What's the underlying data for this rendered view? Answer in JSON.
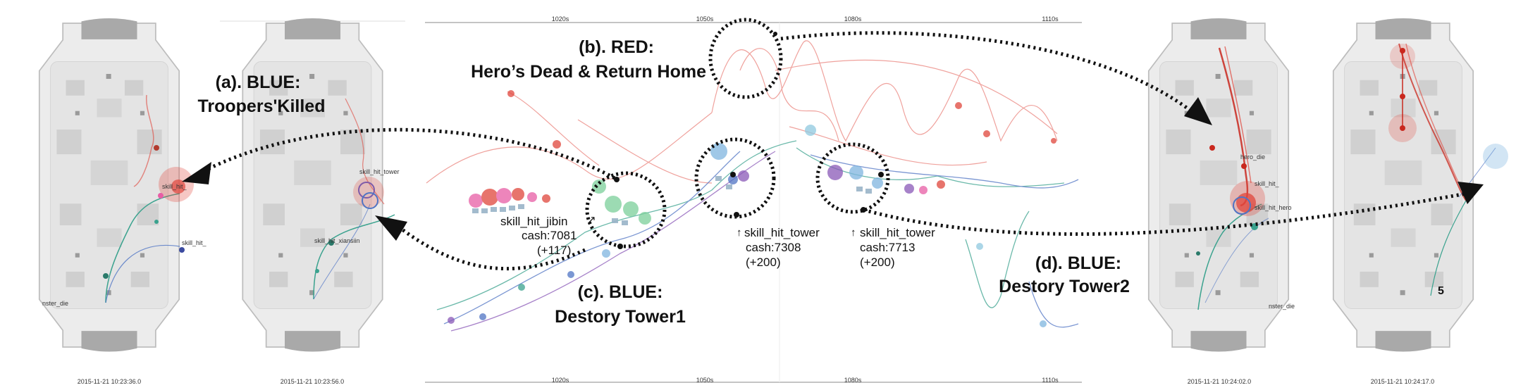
{
  "maps": [
    {
      "timestamp": "2015-11-21 10:23:36.0",
      "labels": [
        "skill_hit_",
        "skill_hit_",
        "nster_die"
      ]
    },
    {
      "timestamp": "2015-11-21 10:23:56.0",
      "labels": [
        "skill_hit_tower",
        "skill_hit_xiansiin"
      ]
    },
    {
      "timestamp": "2015-11-21 10:24:02.0",
      "labels": [
        "hero_die",
        "skill_hit_",
        "skill_hit_hero",
        "nster_die"
      ]
    },
    {
      "timestamp": "2015-11-21 10:24:17.0",
      "labels": [
        "5"
      ]
    }
  ],
  "timeline": {
    "ticks_top": [
      "1020s",
      "1050s",
      "1080s",
      "1110s"
    ],
    "ticks_bottom": [
      "1020s",
      "1050s",
      "1080s",
      "1110s"
    ]
  },
  "annotations": {
    "a": {
      "line1": "(a). BLUE:",
      "line2": "Troopers'Killed"
    },
    "b": {
      "line1": "(b). RED:",
      "line2": "Hero’s Dead & Return Home"
    },
    "c": {
      "line1": "(c). BLUE:",
      "line2": "Destory Tower1"
    },
    "d": {
      "line1": "(d). BLUE:",
      "line2": "Destory Tower2"
    }
  },
  "events": [
    {
      "name": "skill_hit_jibin",
      "cash": "cash:7081",
      "delta": "(+117)"
    },
    {
      "name": "skill_hit_tower",
      "cash": "cash:7308",
      "delta": "(+200)"
    },
    {
      "name": "skill_hit_tower",
      "cash": "cash:7713",
      "delta": "(+200)"
    }
  ],
  "colors": {
    "red": "#e0463c",
    "blue": "#4f74c4",
    "teal": "#3aa28e",
    "purple": "#8a59b8",
    "pink": "#e75da5",
    "map_bg": "#ececec",
    "map_border": "#bdbdbd"
  }
}
